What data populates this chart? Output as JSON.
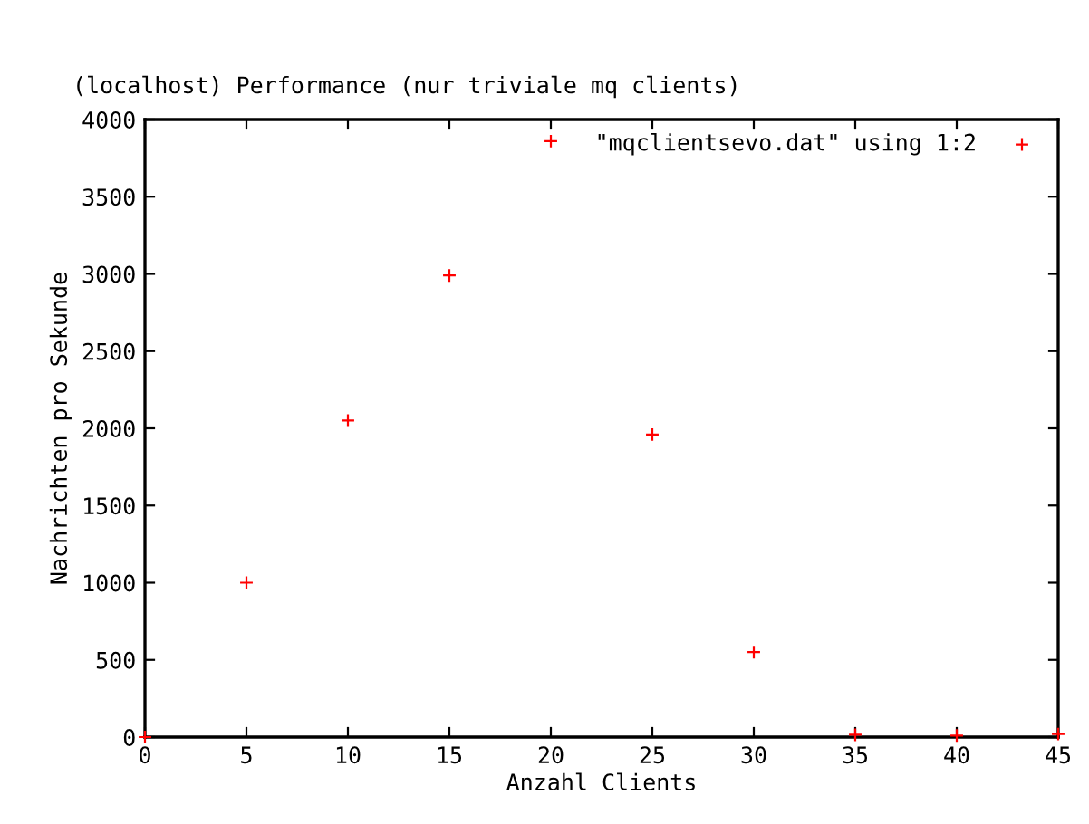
{
  "chart_data": {
    "type": "scatter",
    "title": "(localhost) Performance (nur triviale mq clients)",
    "xlabel": "Anzahl Clients",
    "ylabel": "Nachrichten pro Sekunde",
    "x": [
      0,
      5,
      10,
      15,
      20,
      25,
      30,
      35,
      40,
      45
    ],
    "series": [
      {
        "name": "\"mqclientsevo.dat\" using 1:2",
        "color": "#ff0000",
        "values": [
          0,
          1000,
          2050,
          2990,
          3860,
          1960,
          550,
          15,
          10,
          20
        ]
      }
    ],
    "xlim": [
      0,
      45
    ],
    "ylim": [
      0,
      4000
    ],
    "xticks": [
      0,
      5,
      10,
      15,
      20,
      25,
      30,
      35,
      40,
      45
    ],
    "yticks": [
      0,
      500,
      1000,
      1500,
      2000,
      2500,
      3000,
      3500,
      4000
    ],
    "marker": "cross",
    "legend": "top right",
    "grid": false
  }
}
